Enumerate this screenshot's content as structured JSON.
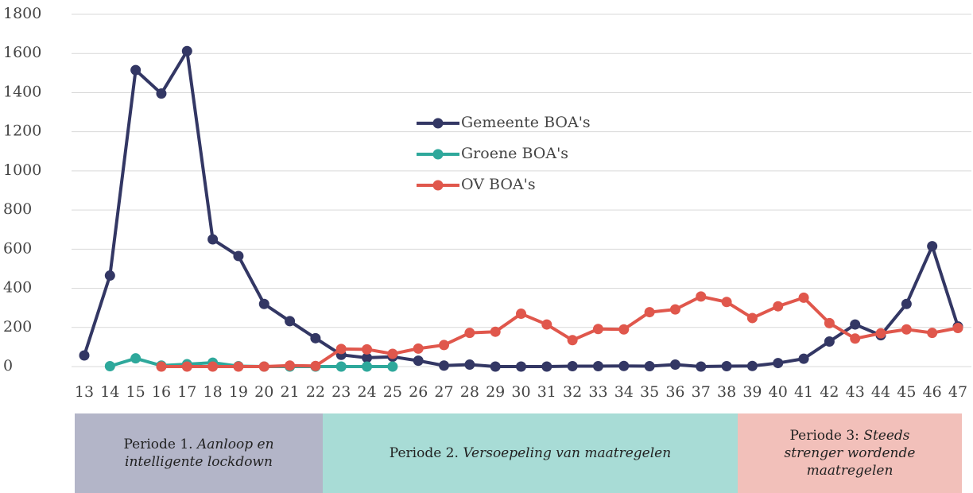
{
  "chart_data": {
    "type": "line",
    "categories": [
      "13",
      "14",
      "15",
      "16",
      "17",
      "18",
      "19",
      "20",
      "21",
      "22",
      "23",
      "24",
      "25",
      "26",
      "27",
      "28",
      "29",
      "30",
      "31",
      "32",
      "33",
      "34",
      "35",
      "36",
      "37",
      "38",
      "39",
      "40",
      "41",
      "42",
      "43",
      "44",
      "45",
      "46",
      "47"
    ],
    "series": [
      {
        "name": "Gemeente BOA's",
        "color": "#333764",
        "values": [
          57,
          465,
          1515,
          1395,
          1612,
          650,
          565,
          320,
          232,
          145,
          60,
          45,
          50,
          30,
          5,
          10,
          0,
          0,
          0,
          2,
          2,
          3,
          2,
          10,
          0,
          2,
          3,
          18,
          40,
          128,
          215,
          160,
          320,
          615,
          205
        ]
      },
      {
        "name": "Groene BOA's",
        "color": "#2ea89b",
        "values": [
          null,
          2,
          42,
          5,
          12,
          20,
          2,
          0,
          0,
          0,
          0,
          0,
          0,
          null,
          null,
          null,
          null,
          null,
          null,
          null,
          null,
          null,
          null,
          null,
          null,
          null,
          null,
          null,
          null,
          null,
          null,
          null,
          null,
          null,
          null
        ]
      },
      {
        "name": "OV BOA's",
        "color": "#e0574c",
        "values": [
          null,
          null,
          null,
          0,
          0,
          0,
          0,
          0,
          5,
          3,
          90,
          88,
          65,
          92,
          110,
          172,
          178,
          270,
          215,
          135,
          192,
          190,
          278,
          292,
          358,
          330,
          248,
          308,
          352,
          222,
          143,
          170,
          190,
          172,
          197
        ]
      }
    ],
    "ylim": [
      0,
      1800
    ],
    "yticks": [
      0,
      200,
      400,
      600,
      800,
      1000,
      1200,
      1400,
      1600,
      1800
    ],
    "grid": true,
    "legend": "center"
  },
  "periods": [
    {
      "label": "Periode 1.",
      "italic": "Aanloop en intelligente lockdown",
      "color": "#b3b5c8"
    },
    {
      "label": "Periode 2.",
      "italic": "Versoepeling van maatregelen",
      "color": "#a8dcd6"
    },
    {
      "label": "Periode 3:",
      "italic": "Steeds strenger wordende maatregelen",
      "color": "#f2c0ba"
    }
  ]
}
